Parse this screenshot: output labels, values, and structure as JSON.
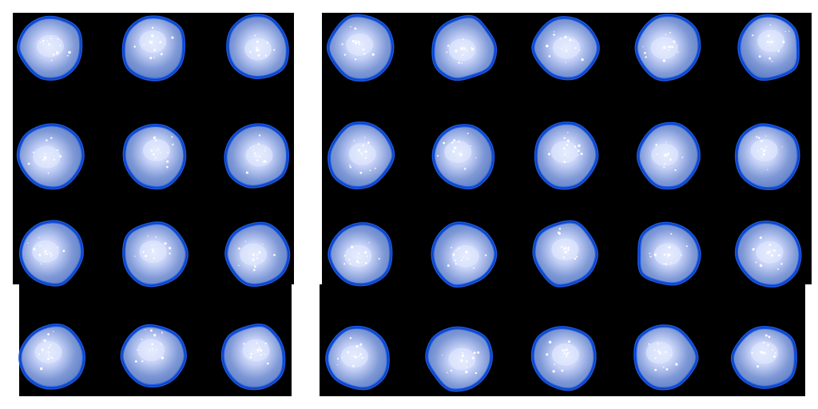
{
  "colors": {
    "background": "#000000",
    "page": "#ffffff",
    "outline": "#1a5be8",
    "outline_dark": "#0a2a8c",
    "body": "#5f7fc4",
    "core": "#e6ecff",
    "sparkle": "#ffffff"
  },
  "sheets": [
    {
      "name": "left-sprite-sheet",
      "columns": 3,
      "rows": 4,
      "frames": 12
    },
    {
      "name": "right-sprite-sheet",
      "columns": 5,
      "rows": 4,
      "frames": 20
    }
  ]
}
